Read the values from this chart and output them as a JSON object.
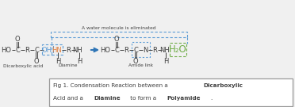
{
  "bg_color": "#f0f0f0",
  "color_normal": "#404040",
  "color_blue": "#5b9bd5",
  "color_orange": "#e07b39",
  "color_green": "#70ad47",
  "color_arrow": "#2e75b6",
  "water_label": "A water molecule is eliminated",
  "label_dicarboxylic": "Dicarboxylic acid",
  "label_diamine": "Diamine",
  "label_amide": "Amide link",
  "cap_line1_normal": "Fig 1. Condensation Reaction between a ",
  "cap_line1_bold": "Dicarboxylic",
  "cap_line2_start": "Acid and a ",
  "cap_line2_bold1": "Diamine",
  "cap_line2_mid": " to form a ",
  "cap_line2_bold2": "Polyamide",
  "cap_line2_end": "."
}
